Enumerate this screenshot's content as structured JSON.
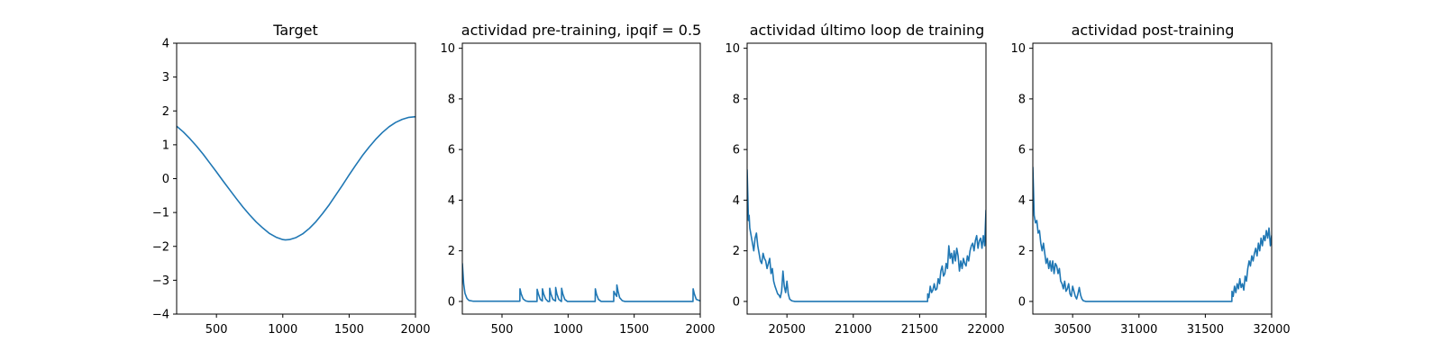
{
  "line_color": "#1f77b4",
  "chart_data": [
    {
      "type": "line",
      "title": "Target",
      "xlabel": "",
      "ylabel": "",
      "xlim": [
        200,
        2000
      ],
      "ylim": [
        -4,
        4
      ],
      "xticks": [
        500,
        1000,
        1500,
        2000
      ],
      "xtick_labels": [
        "500",
        "1000",
        "1500",
        "2000"
      ],
      "yticks": [
        -4,
        -3,
        -2,
        -1,
        0,
        1,
        2,
        3,
        4
      ],
      "ytick_labels": [
        "−4",
        "−3",
        "−2",
        "−1",
        "0",
        "1",
        "2",
        "3",
        "4"
      ],
      "grid": false,
      "series": [
        {
          "x": [
            200,
            250,
            300,
            350,
            400,
            450,
            500,
            550,
            600,
            650,
            700,
            750,
            800,
            850,
            900,
            950,
            1000,
            1020,
            1050,
            1100,
            1150,
            1200,
            1250,
            1300,
            1350,
            1400,
            1450,
            1500,
            1550,
            1600,
            1650,
            1700,
            1750,
            1800,
            1850,
            1900,
            1950,
            2000
          ],
          "y": [
            1.55,
            1.38,
            1.18,
            0.96,
            0.72,
            0.46,
            0.2,
            -0.07,
            -0.33,
            -0.59,
            -0.84,
            -1.07,
            -1.28,
            -1.46,
            -1.62,
            -1.73,
            -1.8,
            -1.81,
            -1.8,
            -1.74,
            -1.63,
            -1.47,
            -1.27,
            -1.03,
            -0.77,
            -0.48,
            -0.19,
            0.11,
            0.4,
            0.68,
            0.93,
            1.16,
            1.36,
            1.53,
            1.66,
            1.75,
            1.81,
            1.83
          ]
        }
      ]
    },
    {
      "type": "line",
      "title": "actividad pre-training, ipqif = 0.5",
      "xlabel": "",
      "ylabel": "",
      "xlim": [
        200,
        2000
      ],
      "ylim": [
        -0.5,
        10.2
      ],
      "xticks": [
        500,
        1000,
        1500,
        2000
      ],
      "xtick_labels": [
        "500",
        "1000",
        "1500",
        "2000"
      ],
      "yticks": [
        0,
        2,
        4,
        6,
        8,
        10
      ],
      "ytick_labels": [
        "0",
        "2",
        "4",
        "6",
        "8",
        "10"
      ],
      "grid": false,
      "series": [
        {
          "x": [
            200,
            210,
            220,
            235,
            250,
            280,
            635,
            636,
            645,
            660,
            680,
            700,
            765,
            766,
            775,
            790,
            805,
            806,
            815,
            830,
            848,
            860,
            861,
            870,
            885,
            905,
            906,
            915,
            930,
            948,
            950,
            951,
            960,
            975,
            995,
            1205,
            1206,
            1215,
            1230,
            1250,
            1345,
            1346,
            1355,
            1368,
            1369,
            1378,
            1390,
            1410,
            1430,
            1945,
            1946,
            1955,
            1970,
            2000
          ],
          "y": [
            1.5,
            0.7,
            0.32,
            0.12,
            0.04,
            0.01,
            0.01,
            0.5,
            0.3,
            0.1,
            0.02,
            0.0,
            0.0,
            0.48,
            0.3,
            0.08,
            0.02,
            0.5,
            0.3,
            0.1,
            0.0,
            0.0,
            0.52,
            0.3,
            0.08,
            0.02,
            0.55,
            0.3,
            0.08,
            0.0,
            0.0,
            0.52,
            0.3,
            0.08,
            0.0,
            0.0,
            0.5,
            0.28,
            0.08,
            0.0,
            0.0,
            0.4,
            0.3,
            0.2,
            0.65,
            0.4,
            0.15,
            0.03,
            0.0,
            0.0,
            0.5,
            0.3,
            0.08,
            0.02
          ]
        }
      ]
    },
    {
      "type": "line",
      "title": "actividad último loop de training",
      "xlabel": "",
      "ylabel": "",
      "xlim": [
        20200,
        22000
      ],
      "ylim": [
        -0.5,
        10.2
      ],
      "xticks": [
        20500,
        21000,
        21500,
        22000
      ],
      "xtick_labels": [
        "20500",
        "21000",
        "21500",
        "22000"
      ],
      "yticks": [
        0,
        2,
        4,
        6,
        8,
        10
      ],
      "ytick_labels": [
        "0",
        "2",
        "4",
        "6",
        "8",
        "10"
      ],
      "grid": false,
      "series": [
        {
          "x": [
            20200,
            20205,
            20210,
            20215,
            20220,
            20230,
            20240,
            20250,
            20260,
            20270,
            20280,
            20290,
            20300,
            20310,
            20320,
            20330,
            20340,
            20350,
            20360,
            20370,
            20380,
            20390,
            20400,
            20410,
            20420,
            20430,
            20440,
            20450,
            20460,
            20470,
            20480,
            20490,
            20500,
            20510,
            20520,
            20530,
            20540,
            20560,
            20600,
            21560,
            21561,
            21570,
            21580,
            21590,
            21600,
            21610,
            21620,
            21630,
            21640,
            21650,
            21660,
            21670,
            21680,
            21690,
            21700,
            21710,
            21720,
            21730,
            21740,
            21750,
            21760,
            21770,
            21780,
            21790,
            21800,
            21810,
            21820,
            21830,
            21840,
            21850,
            21860,
            21870,
            21880,
            21890,
            21900,
            21910,
            21920,
            21930,
            21940,
            21950,
            21960,
            21970,
            21980,
            21990,
            22000
          ],
          "y": [
            5.2,
            4.2,
            3.2,
            3.4,
            2.9,
            2.6,
            2.3,
            2.0,
            2.5,
            2.7,
            2.2,
            1.9,
            1.6,
            1.5,
            1.9,
            1.7,
            1.6,
            1.3,
            1.5,
            1.7,
            1.1,
            1.3,
            0.8,
            0.6,
            0.45,
            0.3,
            0.25,
            0.15,
            0.4,
            1.2,
            0.6,
            0.35,
            0.8,
            0.3,
            0.1,
            0.05,
            0.02,
            0.0,
            0.0,
            0.0,
            0.3,
            0.15,
            0.6,
            0.35,
            0.45,
            0.7,
            0.45,
            0.5,
            0.9,
            0.7,
            1.2,
            1.4,
            1.0,
            1.1,
            1.5,
            1.3,
            2.2,
            1.7,
            1.9,
            1.5,
            2.0,
            1.6,
            2.1,
            1.8,
            1.2,
            1.6,
            1.3,
            1.7,
            1.5,
            1.4,
            1.8,
            1.6,
            2.0,
            2.2,
            2.3,
            2.0,
            2.4,
            2.6,
            2.1,
            2.4,
            2.5,
            2.1,
            2.6,
            2.2,
            3.6
          ]
        }
      ]
    },
    {
      "type": "line",
      "title": "actividad post-training",
      "xlabel": "",
      "ylabel": "",
      "xlim": [
        30200,
        32000
      ],
      "ylim": [
        -0.5,
        10.2
      ],
      "xticks": [
        30500,
        31000,
        31500,
        32000
      ],
      "xtick_labels": [
        "30500",
        "31000",
        "31500",
        "32000"
      ],
      "yticks": [
        0,
        2,
        4,
        6,
        8,
        10
      ],
      "ytick_labels": [
        "0",
        "2",
        "4",
        "6",
        "8",
        "10"
      ],
      "grid": false,
      "series": [
        {
          "x": [
            30200,
            30205,
            30210,
            30220,
            30230,
            30240,
            30250,
            30260,
            30270,
            30280,
            30290,
            30300,
            30310,
            30320,
            30330,
            30340,
            30350,
            30360,
            30370,
            30380,
            30390,
            30400,
            30410,
            30420,
            30430,
            30440,
            30450,
            30460,
            30470,
            30480,
            30490,
            30500,
            30510,
            30520,
            30530,
            30540,
            30550,
            30560,
            30570,
            30580,
            30600,
            31700,
            31701,
            31710,
            31720,
            31730,
            31740,
            31750,
            31760,
            31770,
            31780,
            31790,
            31800,
            31810,
            31820,
            31830,
            31840,
            31850,
            31860,
            31870,
            31880,
            31890,
            31900,
            31910,
            31920,
            31930,
            31940,
            31950,
            31960,
            31970,
            31980,
            31990,
            32000
          ],
          "y": [
            5.3,
            4.4,
            3.4,
            3.1,
            3.2,
            2.7,
            2.8,
            2.3,
            2.0,
            2.3,
            1.9,
            1.5,
            1.7,
            1.3,
            1.6,
            1.2,
            1.6,
            1.1,
            1.5,
            1.4,
            1.1,
            1.3,
            0.8,
            0.7,
            0.5,
            0.8,
            0.4,
            0.5,
            0.7,
            0.3,
            0.2,
            0.6,
            0.4,
            0.2,
            0.1,
            0.3,
            0.55,
            0.25,
            0.1,
            0.03,
            0.0,
            0.0,
            0.4,
            0.2,
            0.6,
            0.35,
            0.7,
            0.5,
            0.9,
            0.55,
            0.7,
            0.45,
            1.0,
            0.8,
            1.3,
            1.6,
            1.4,
            1.8,
            1.6,
            1.9,
            2.1,
            1.8,
            2.3,
            2.0,
            2.5,
            2.2,
            2.6,
            2.4,
            2.8,
            2.5,
            2.9,
            2.2,
            2.6
          ]
        }
      ]
    }
  ]
}
